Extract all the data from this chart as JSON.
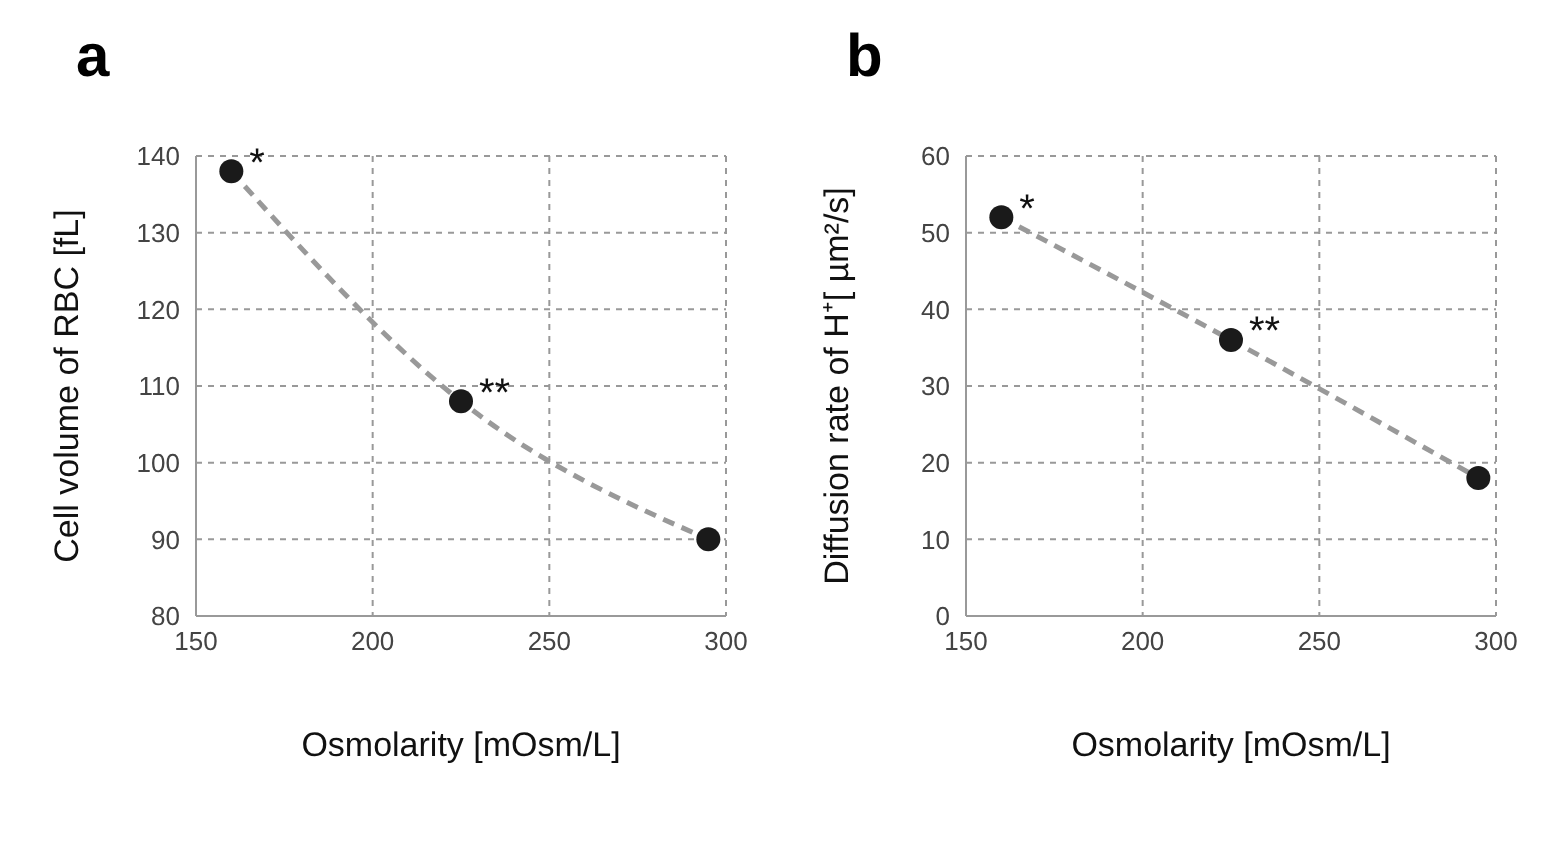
{
  "chart_data": [
    {
      "type": "scatter",
      "title": "a",
      "xlabel": "Osmolarity [mOsm/L]",
      "ylabel": "Cell volume of RBC [fL]",
      "xlim": [
        150,
        300
      ],
      "xticks": [
        150,
        200,
        250,
        300
      ],
      "ylim": [
        80,
        140
      ],
      "yticks": [
        80,
        90,
        100,
        110,
        120,
        130,
        140
      ],
      "grid": true,
      "marker": "circle",
      "series": [
        {
          "type": "line",
          "line_style": "dashed",
          "marker": "none",
          "color": "#999999",
          "x": [
            160,
            225,
            295
          ],
          "values": [
            138,
            108,
            90
          ]
        },
        {
          "color": "#1a1a1a",
          "x": [
            160,
            225,
            295
          ],
          "values": [
            138,
            108,
            90
          ]
        }
      ],
      "annotations": [
        "*",
        "**"
      ]
    },
    {
      "type": "scatter",
      "title": "b",
      "xlabel": "Osmolarity [mOsm/L]",
      "ylabel": "Diffusion rate of H⁺[ µm²/s]",
      "xlim": [
        150,
        300
      ],
      "xticks": [
        150,
        200,
        250,
        300
      ],
      "ylim": [
        0,
        60
      ],
      "yticks": [
        0,
        10,
        20,
        30,
        40,
        50,
        60
      ],
      "grid": true,
      "marker": "circle",
      "series": [
        {
          "type": "line",
          "line_style": "dashed",
          "marker": "none",
          "color": "#999999",
          "x": [
            160,
            225,
            295
          ],
          "values": [
            52,
            36,
            18
          ]
        },
        {
          "color": "#1a1a1a",
          "x": [
            160,
            225,
            295
          ],
          "values": [
            52,
            36,
            18
          ]
        }
      ],
      "annotations": [
        "*",
        "**"
      ]
    }
  ]
}
